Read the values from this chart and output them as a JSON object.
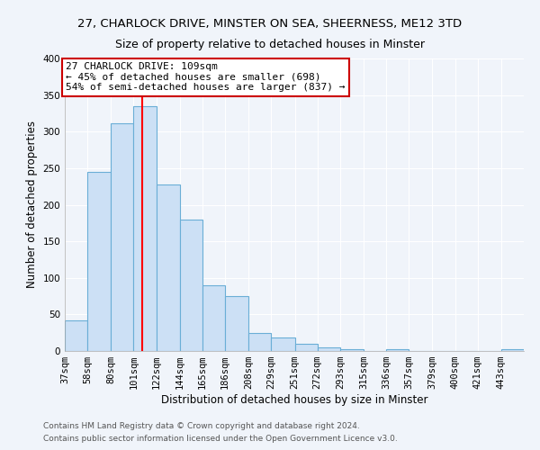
{
  "title_line1": "27, CHARLOCK DRIVE, MINSTER ON SEA, SHEERNESS, ME12 3TD",
  "title_line2": "Size of property relative to detached houses in Minster",
  "xlabel": "Distribution of detached houses by size in Minster",
  "ylabel": "Number of detached properties",
  "bin_edges": [
    37,
    58,
    80,
    101,
    122,
    144,
    165,
    186,
    208,
    229,
    251,
    272,
    293,
    315,
    336,
    357,
    379,
    400,
    421,
    443,
    464
  ],
  "bar_heights": [
    42,
    245,
    312,
    335,
    228,
    180,
    90,
    75,
    25,
    18,
    10,
    5,
    3,
    0,
    2,
    0,
    0,
    0,
    0,
    3
  ],
  "bar_color": "#cce0f5",
  "bar_edge_color": "#6aaed6",
  "red_line_x": 109,
  "ylim": [
    0,
    400
  ],
  "yticks": [
    0,
    50,
    100,
    150,
    200,
    250,
    300,
    350,
    400
  ],
  "annotation_title": "27 CHARLOCK DRIVE: 109sqm",
  "annotation_line1": "← 45% of detached houses are smaller (698)",
  "annotation_line2": "54% of semi-detached houses are larger (837) →",
  "annotation_box_color": "#ffffff",
  "annotation_box_edge": "#cc0000",
  "footer_line1": "Contains HM Land Registry data © Crown copyright and database right 2024.",
  "footer_line2": "Contains public sector information licensed under the Open Government Licence v3.0.",
  "background_color": "#f0f4fa",
  "grid_color": "#ffffff",
  "title_fontsize": 9.5,
  "subtitle_fontsize": 9,
  "axis_label_fontsize": 8.5,
  "tick_fontsize": 7.5,
  "annot_fontsize": 8,
  "footer_fontsize": 6.5
}
